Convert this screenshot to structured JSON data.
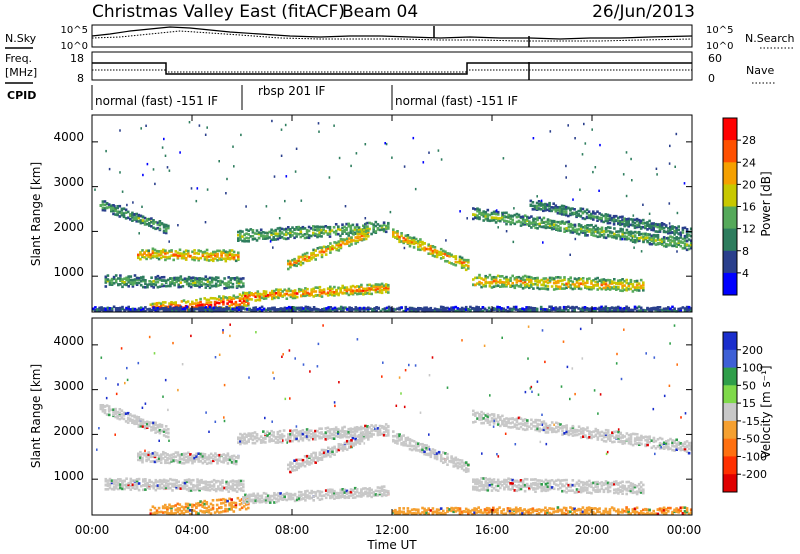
{
  "header": {
    "station": "Christmas Valley East (fitACF)",
    "beam": "Beam 04",
    "date": "26/Jun/2013"
  },
  "side_labels": {
    "nsky": "N.Sky",
    "nsearch": "N.Search",
    "freq_line1": "Freq.",
    "freq_line2": "[MHz]",
    "nave": "Nave",
    "cpid": "CPID"
  },
  "ticks": {
    "noise_left": [
      "10^5",
      "10^0"
    ],
    "noise_right": [
      "10^5",
      "10^0"
    ],
    "freq_left": [
      "18",
      "8"
    ],
    "freq_right": [
      "60",
      "0"
    ],
    "range": [
      "1000",
      "2000",
      "3000",
      "4000"
    ],
    "time": [
      "00:00",
      "04:00",
      "08:00",
      "12:00",
      "16:00",
      "20:00",
      "00:00"
    ]
  },
  "cpid_segments": [
    {
      "label": "normal (fast) -151 IF",
      "start_h": 0,
      "end_h": 6
    },
    {
      "label": "rbsp 201 IF",
      "start_h": 6,
      "end_h": 12
    },
    {
      "label": "normal (fast) -151 IF",
      "start_h": 12,
      "end_h": 24
    }
  ],
  "axis_titles": {
    "range": "Slant Range [km]",
    "time": "Time UT",
    "power": "Power [dB]",
    "velocity": "Velocity [m s⁻¹]"
  },
  "chart_data": [
    {
      "type": "heatmap",
      "panel": "power",
      "x_unit": "hours UT",
      "xlim": [
        0,
        24
      ],
      "ylim": [
        200,
        4600
      ],
      "colorbar": {
        "ticks": [
          "4",
          "8",
          "12",
          "16",
          "20",
          "24",
          "28"
        ],
        "colors": [
          "#0000ff",
          "#2a3f8c",
          "#2e7d5e",
          "#55a95a",
          "#c8c800",
          "#f5a000",
          "#ff5000",
          "#ff0000"
        ]
      },
      "bands": [
        {
          "t": [
            0.3,
            3.0
          ],
          "r0": [
            2650,
            2100
          ],
          "w": 220,
          "level": 12
        },
        {
          "t": [
            1.8,
            5.8
          ],
          "r0": [
            1550,
            1500
          ],
          "w": 230,
          "level": 22
        },
        {
          "t": [
            2.3,
            6.2
          ],
          "r0": [
            300,
            520
          ],
          "w": 300,
          "level": 28
        },
        {
          "t": [
            6.0,
            11.8
          ],
          "r0": [
            600,
            780
          ],
          "w": 200,
          "level": 24
        },
        {
          "t": [
            0.5,
            6.0
          ],
          "r0": [
            950,
            900
          ],
          "w": 250,
          "level": 12
        },
        {
          "t": [
            5.8,
            11.8
          ],
          "r0": [
            1950,
            2150
          ],
          "w": 260,
          "level": 14
        },
        {
          "t": [
            7.8,
            11.0
          ],
          "r0": [
            1300,
            2000
          ],
          "w": 220,
          "level": 22
        },
        {
          "t": [
            12.0,
            15.0
          ],
          "r0": [
            2000,
            1300
          ],
          "w": 240,
          "level": 22
        },
        {
          "t": [
            15.2,
            22.0
          ],
          "r0": [
            950,
            850
          ],
          "w": 280,
          "level": 20
        },
        {
          "t": [
            15.2,
            24.0
          ],
          "r0": [
            2450,
            1750
          ],
          "w": 250,
          "level": 14
        },
        {
          "t": [
            17.5,
            24.0
          ],
          "r0": [
            2650,
            2000
          ],
          "w": 200,
          "level": 10
        },
        {
          "t": [
            0.0,
            24.0
          ],
          "r0": [
            280,
            280
          ],
          "w": 120,
          "level": 6
        }
      ]
    },
    {
      "type": "heatmap",
      "panel": "velocity",
      "x_unit": "hours UT",
      "xlim": [
        0,
        24
      ],
      "ylim": [
        200,
        4600
      ],
      "colorbar": {
        "ticks": [
          "200",
          "100",
          "50",
          "15",
          "-15",
          "-50",
          "-100",
          "-200"
        ],
        "colors": [
          "#1a2ecc",
          "#3e60d6",
          "#2f9e4a",
          "#7fd94a",
          "#c8c8c8",
          "#f5a030",
          "#ff7010",
          "#ff3000",
          "#e00000"
        ]
      },
      "bands": [
        {
          "t": [
            0.3,
            3.0
          ],
          "r0": [
            2650,
            2100
          ],
          "w": 220,
          "level": 0
        },
        {
          "t": [
            1.8,
            5.8
          ],
          "r0": [
            1550,
            1500
          ],
          "w": 230,
          "level": 0
        },
        {
          "t": [
            2.3,
            6.2
          ],
          "r0": [
            300,
            520
          ],
          "w": 300,
          "level": -40
        },
        {
          "t": [
            6.0,
            11.8
          ],
          "r0": [
            600,
            780
          ],
          "w": 200,
          "level": 0
        },
        {
          "t": [
            0.5,
            6.0
          ],
          "r0": [
            950,
            900
          ],
          "w": 250,
          "level": 0
        },
        {
          "t": [
            5.8,
            11.8
          ],
          "r0": [
            1950,
            2150
          ],
          "w": 260,
          "level": 0
        },
        {
          "t": [
            7.8,
            11.0
          ],
          "r0": [
            1300,
            2000
          ],
          "w": 220,
          "level": 0
        },
        {
          "t": [
            12.0,
            15.0
          ],
          "r0": [
            2000,
            1300
          ],
          "w": 240,
          "level": 0
        },
        {
          "t": [
            15.2,
            22.0
          ],
          "r0": [
            950,
            850
          ],
          "w": 280,
          "level": 0
        },
        {
          "t": [
            15.2,
            24.0
          ],
          "r0": [
            2450,
            1750
          ],
          "w": 250,
          "level": 0
        },
        {
          "t": [
            12.0,
            24.0
          ],
          "r0": [
            300,
            300
          ],
          "w": 220,
          "level": -40
        }
      ]
    }
  ]
}
